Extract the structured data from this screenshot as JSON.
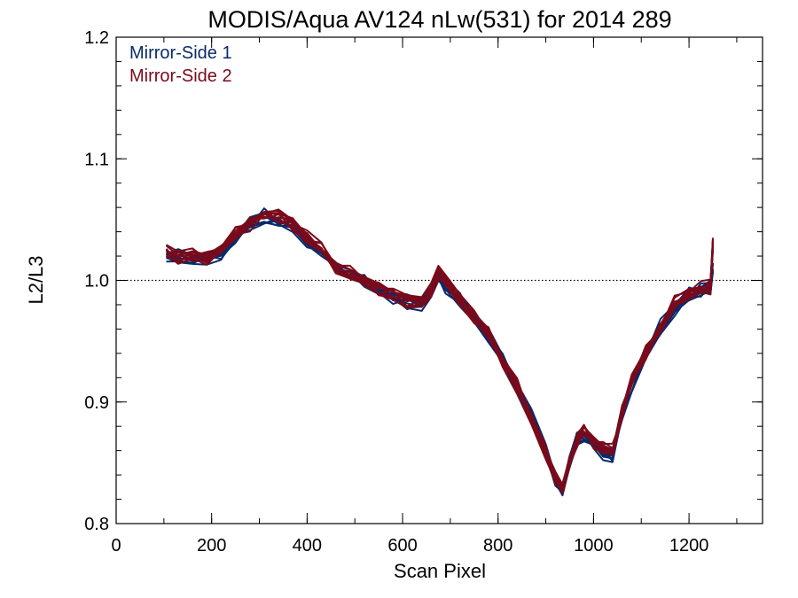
{
  "chart_data": {
    "type": "line",
    "title": "MODIS/Aqua AV124 nLw(531) for 2014 289",
    "xlabel": "Scan Pixel",
    "ylabel": "L2/L3",
    "xlim": [
      0,
      1354
    ],
    "ylim": [
      0.8,
      1.2
    ],
    "xticks": [
      "0",
      "200",
      "400",
      "600",
      "800",
      "1000",
      "1200"
    ],
    "yticks": [
      "0.8",
      "0.9",
      "1.0",
      "1.1",
      "1.2"
    ],
    "reference_line": 1.0,
    "legend_placement": "top-left",
    "series": [
      {
        "name": "Mirror-Side 1",
        "color": "#0a2a6b",
        "x": [
          105,
          130,
          160,
          190,
          220,
          250,
          280,
          310,
          340,
          370,
          400,
          430,
          460,
          490,
          520,
          550,
          580,
          610,
          640,
          660,
          675,
          690,
          720,
          750,
          780,
          810,
          840,
          870,
          900,
          920,
          935,
          950,
          965,
          980,
          1000,
          1020,
          1040,
          1060,
          1080,
          1110,
          1140,
          1170,
          1200,
          1225,
          1245,
          1250
        ],
        "y": [
          1.022,
          1.02,
          1.017,
          1.02,
          1.023,
          1.037,
          1.047,
          1.054,
          1.051,
          1.047,
          1.033,
          1.025,
          1.012,
          1.005,
          1.002,
          0.993,
          0.987,
          0.983,
          0.982,
          0.993,
          1.007,
          0.996,
          0.985,
          0.971,
          0.955,
          0.935,
          0.914,
          0.888,
          0.86,
          0.838,
          0.83,
          0.852,
          0.87,
          0.874,
          0.868,
          0.858,
          0.858,
          0.892,
          0.915,
          0.942,
          0.962,
          0.978,
          0.99,
          0.994,
          0.996,
          1.01
        ]
      },
      {
        "name": "Mirror-Side 2",
        "color": "#7a0a1a",
        "x": [
          105,
          130,
          160,
          190,
          220,
          250,
          280,
          310,
          340,
          370,
          400,
          430,
          460,
          490,
          520,
          550,
          580,
          610,
          640,
          660,
          675,
          690,
          720,
          750,
          780,
          810,
          840,
          870,
          900,
          920,
          935,
          950,
          965,
          980,
          1000,
          1020,
          1040,
          1060,
          1080,
          1110,
          1140,
          1170,
          1200,
          1225,
          1245,
          1250
        ],
        "y": [
          1.023,
          1.018,
          1.019,
          1.018,
          1.024,
          1.038,
          1.046,
          1.053,
          1.052,
          1.046,
          1.034,
          1.026,
          1.01,
          1.006,
          1.0,
          0.992,
          0.988,
          0.982,
          0.983,
          0.991,
          1.006,
          0.998,
          0.983,
          0.97,
          0.956,
          0.933,
          0.912,
          0.886,
          0.858,
          0.836,
          0.828,
          0.85,
          0.868,
          0.876,
          0.866,
          0.86,
          0.86,
          0.89,
          0.917,
          0.94,
          0.96,
          0.98,
          0.988,
          0.992,
          0.994,
          1.03
        ]
      }
    ]
  }
}
